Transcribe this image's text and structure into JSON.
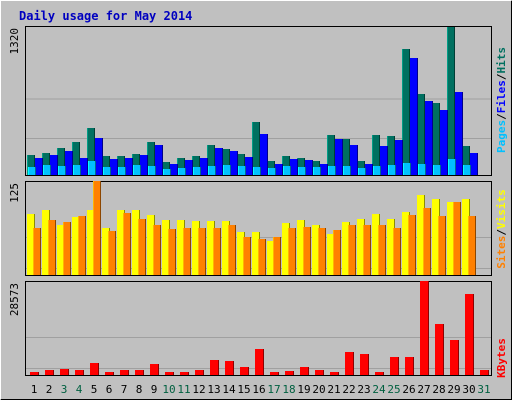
{
  "colors": {
    "background": "#c0c0c0",
    "panel_border": "#a0a0a0",
    "frame_dark": "#000000",
    "title": "#0000c0",
    "hits": "#007060",
    "files": "#0000ff",
    "pages": "#00c0ff",
    "visits": "#ffff00",
    "sites": "#ff8000",
    "kbytes": "#ff0000",
    "weekday_label": "#000000",
    "weekend_label": "#006040"
  },
  "chart_data": {
    "type": "bar",
    "title": "Daily usage for May 2014",
    "days": [
      "1",
      "2",
      "3",
      "4",
      "5",
      "6",
      "7",
      "8",
      "9",
      "10",
      "11",
      "12",
      "13",
      "14",
      "15",
      "16",
      "17",
      "18",
      "19",
      "20",
      "21",
      "22",
      "23",
      "24",
      "25",
      "26",
      "27",
      "28",
      "29",
      "30",
      "31"
    ],
    "weekend_days": [
      "3",
      "4",
      "10",
      "11",
      "17",
      "18",
      "24",
      "25",
      "31"
    ],
    "panels": [
      {
        "id": "hits_files_pages",
        "max_label": "1320",
        "ylim": [
          0,
          1320
        ],
        "legend": [
          {
            "text": "Pages",
            "color_key": "pages"
          },
          {
            "text": "Files",
            "color_key": "files"
          },
          {
            "text": "Hits",
            "color_key": "hits"
          }
        ],
        "separator": "/",
        "series": [
          {
            "name": "Hits",
            "color_key": "hits",
            "values": [
              175,
              195,
              240,
              290,
              420,
              165,
              165,
              185,
              295,
              115,
              150,
              165,
              265,
              230,
              185,
              470,
              125,
              170,
              155,
              125,
              355,
              320,
              125,
              355,
              350,
              1120,
              720,
              640,
              1320,
              255,
              0
            ]
          },
          {
            "name": "Files",
            "color_key": "files",
            "values": [
              150,
              180,
              215,
              150,
              330,
              145,
              150,
              180,
              265,
              95,
              130,
              150,
              240,
              210,
              160,
              370,
              95,
              145,
              135,
              100,
              325,
              270,
              100,
              255,
              310,
              1040,
              660,
              580,
              740,
              200,
              0
            ]
          },
          {
            "name": "Pages",
            "color_key": "pages",
            "values": [
              75,
              85,
              80,
              90,
              125,
              75,
              70,
              85,
              80,
              55,
              65,
              75,
              80,
              90,
              80,
              75,
              65,
              80,
              70,
              70,
              80,
              80,
              60,
              80,
              85,
              110,
              95,
              90,
              145,
              85,
              0
            ]
          }
        ]
      },
      {
        "id": "visits_sites",
        "max_label": "125",
        "ylim": [
          0,
          125
        ],
        "legend": [
          {
            "text": "Sites",
            "color_key": "sites"
          },
          {
            "text": "Visits",
            "color_key": "visits"
          }
        ],
        "separator": "/",
        "series": [
          {
            "name": "Visits",
            "color_key": "visits",
            "values": [
              81,
              86,
              66,
              77,
              87,
              63,
              86,
              86,
              80,
              73,
              73,
              72,
              72,
              72,
              57,
              57,
              45,
              69,
              73,
              67,
              54,
              71,
              75,
              81,
              74,
              84,
              107,
              101,
              97,
              101,
              0
            ]
          },
          {
            "name": "Sites",
            "color_key": "sites",
            "values": [
              63,
              73,
              70,
              79,
              125,
              59,
              82,
              75,
              66,
              61,
              63,
              62,
              62,
              66,
              50,
              48,
              51,
              62,
              64,
              62,
              60,
              66,
              67,
              67,
              62,
              80,
              89,
              79,
              97,
              79,
              0
            ]
          }
        ]
      },
      {
        "id": "kbytes",
        "max_label": "28573",
        "ylim": [
          0,
          28573
        ],
        "legend": [
          {
            "text": "KBytes",
            "color_key": "kbytes"
          }
        ],
        "separator": "",
        "series": [
          {
            "name": "KBytes",
            "color_key": "kbytes",
            "values": [
              1000,
              1500,
              1800,
              1500,
              3500,
              1000,
              1500,
              1500,
              3300,
              800,
              1000,
              1500,
              4700,
              4200,
              2500,
              7800,
              800,
              1200,
              2500,
              1500,
              800,
              7000,
              6500,
              800,
              5500,
              5500,
              28573,
              15500,
              10500,
              24600,
              1500
            ]
          }
        ]
      }
    ]
  }
}
